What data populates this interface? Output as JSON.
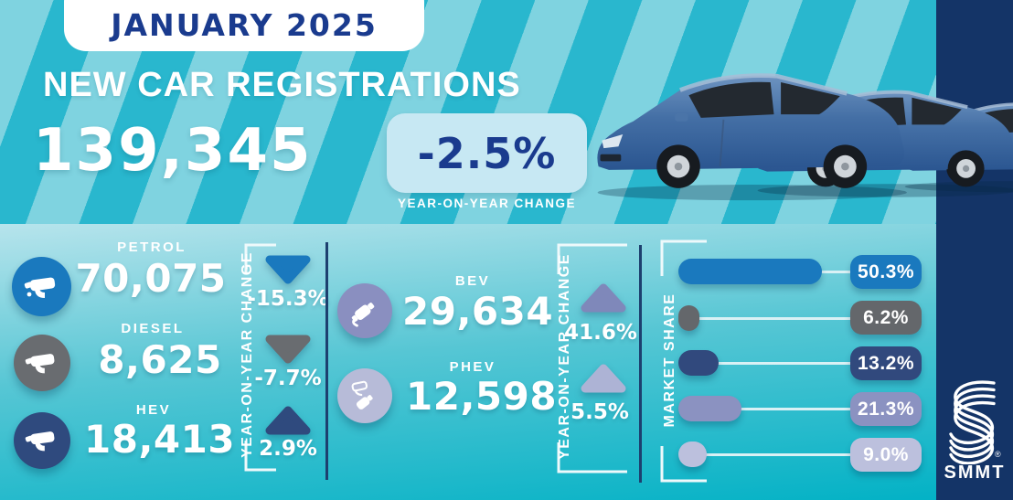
{
  "header": {
    "badge": "JANUARY 2025",
    "title": "NEW CAR REGISTRATIONS",
    "total_registrations": "139,345",
    "yoy_change": "-2.5%",
    "yoy_caption": "YEAR-ON-YEAR CHANGE"
  },
  "fuel_section": {
    "axis_label": "YEAR-ON-YEAR CHANGE",
    "rows": [
      {
        "label": "PETROL",
        "value": "70,075",
        "change": "-15.3%",
        "direction": "down",
        "color": "#1a79be"
      },
      {
        "label": "DIESEL",
        "value": "8,625",
        "change": "-7.7%",
        "direction": "down",
        "color": "#696c70"
      },
      {
        "label": "HEV",
        "value": "18,413",
        "change": "2.9%",
        "direction": "up",
        "color": "#2f4a7e"
      }
    ]
  },
  "ev_section": {
    "axis_label": "YEAR-ON-YEAR CHANGE",
    "rows": [
      {
        "label": "BEV",
        "value": "29,634",
        "change": "41.6%",
        "direction": "up",
        "color": "#8a8fc0"
      },
      {
        "label": "PHEV",
        "value": "12,598",
        "change": "5.5%",
        "direction": "up",
        "color": "#b7bbd8"
      }
    ]
  },
  "market_share": {
    "axis_label": "MARKET SHARE",
    "rows": [
      {
        "fuel": "PETROL",
        "pct": 50.3,
        "display": "50.3%",
        "color": "#1a79be"
      },
      {
        "fuel": "DIESEL",
        "pct": 6.2,
        "display": "6.2%",
        "color": "#64676b"
      },
      {
        "fuel": "HEV",
        "pct": 13.2,
        "display": "13.2%",
        "color": "#31497d"
      },
      {
        "fuel": "BEV",
        "pct": 21.3,
        "display": "21.3%",
        "color": "#8b92c1"
      },
      {
        "fuel": "PHEV",
        "pct": 9.0,
        "display": "9.0%",
        "color": "#bcc0dd"
      }
    ]
  },
  "brand": {
    "logo": "SMMT",
    "registered": "®"
  },
  "colors": {
    "stripe_light": "#7fd3e0",
    "stripe_dark": "#29b7ce",
    "bottom_gradient_top": "#b7e4ec",
    "bottom_gradient_bottom": "#00b1c5",
    "sidebar_navy": "#143467",
    "navy_text": "#1a3b8e",
    "yoy_box_bg": "#c7e8f3",
    "white": "#ffffff"
  },
  "chart_data": [
    {
      "type": "bar",
      "title": "NEW CAR REGISTRATIONS — JANUARY 2025",
      "categories": [
        "PETROL",
        "DIESEL",
        "HEV",
        "BEV",
        "PHEV"
      ],
      "values": [
        70075,
        8625,
        18413,
        29634,
        12598
      ],
      "yoy_change_pct": [
        -15.3,
        -7.7,
        2.9,
        41.6,
        5.5
      ],
      "total_registrations": 139345,
      "total_yoy_change_pct": -2.5,
      "xlabel": "",
      "ylabel": "registrations"
    },
    {
      "type": "bar",
      "title": "MARKET SHARE",
      "categories": [
        "PETROL",
        "DIESEL",
        "HEV",
        "BEV",
        "PHEV"
      ],
      "values": [
        50.3,
        6.2,
        13.2,
        21.3,
        9.0
      ],
      "unit": "%",
      "orientation": "horizontal",
      "xlim": [
        0,
        100
      ],
      "legend_position": "none",
      "grid": false
    }
  ]
}
